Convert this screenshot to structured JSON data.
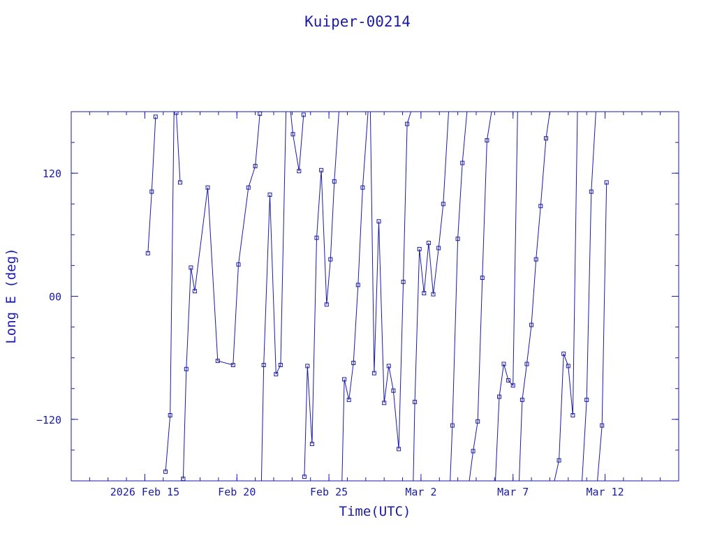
{
  "chart_data": {
    "type": "line",
    "title": "Kuiper-00214",
    "xlabel": "Time(UTC)",
    "ylabel": "Long E (deg)",
    "xlim": [
      "2026-02-11T00:00",
      "2026-03-16T00:00"
    ],
    "ylim": [
      -180,
      180
    ],
    "x_ticks": [
      {
        "t": "2026-02-15T00:00",
        "label": "2026 Feb 15"
      },
      {
        "t": "2026-02-20T00:00",
        "label": "Feb 20"
      },
      {
        "t": "2026-02-25T00:00",
        "label": "Feb 25"
      },
      {
        "t": "2026-03-02T00:00",
        "label": "Mar  2"
      },
      {
        "t": "2026-03-07T00:00",
        "label": "Mar  7"
      },
      {
        "t": "2026-03-12T00:00",
        "label": "Mar 12"
      }
    ],
    "y_ticks": [
      {
        "v": -120,
        "label": "−120"
      },
      {
        "v": 0,
        "label": "00"
      },
      {
        "v": 120,
        "label": "120"
      }
    ],
    "grid": false,
    "color": "#1a1aa8",
    "series": [
      {
        "points": [
          [
            "2026-02-15T04:00",
            42
          ],
          [
            "2026-02-15T09:00",
            102
          ],
          [
            "2026-02-15T14:00",
            175
          ]
        ]
      },
      {
        "points": [
          [
            "2026-02-16T03:00",
            -171
          ],
          [
            "2026-02-16T09:00",
            -116
          ],
          [
            "2026-02-16T14:00",
            180
          ]
        ]
      },
      {
        "points": [
          [
            "2026-02-16T17:00",
            179
          ],
          [
            "2026-02-16T22:00",
            111
          ]
        ]
      },
      {
        "points": [
          [
            "2026-02-17T02:00",
            -178
          ],
          [
            "2026-02-17T06:00",
            -71
          ],
          [
            "2026-02-17T12:00",
            28
          ],
          [
            "2026-02-17T17:00",
            5
          ],
          [
            "2026-02-18T10:00",
            106
          ],
          [
            "2026-02-18T23:00",
            -63
          ],
          [
            "2026-02-19T19:00",
            -67
          ],
          [
            "2026-02-20T02:00",
            31
          ],
          [
            "2026-02-20T15:00",
            106
          ],
          [
            "2026-02-21T00:00",
            127
          ],
          [
            "2026-02-21T06:00",
            178
          ]
        ]
      },
      {
        "points": [
          [
            "2026-02-21T08:00",
            -180
          ],
          [
            "2026-02-21T11:00",
            -67
          ],
          [
            "2026-02-21T19:00",
            99
          ],
          [
            "2026-02-22T03:00",
            -76
          ],
          [
            "2026-02-22T09:00",
            -67
          ],
          [
            "2026-02-22T16:00",
            180
          ]
        ]
      },
      {
        "points": [
          [
            "2026-02-22T22:00",
            180
          ],
          [
            "2026-02-23T01:00",
            158
          ],
          [
            "2026-02-23T09:00",
            122
          ],
          [
            "2026-02-23T15:00",
            177
          ]
        ]
      },
      {
        "points": [
          [
            "2026-02-23T16:00",
            -176
          ],
          [
            "2026-02-23T20:00",
            -68
          ],
          [
            "2026-02-24T02:00",
            -144
          ],
          [
            "2026-02-24T08:00",
            57
          ],
          [
            "2026-02-24T14:00",
            123
          ],
          [
            "2026-02-24T21:00",
            -8
          ],
          [
            "2026-02-25T02:00",
            36
          ],
          [
            "2026-02-25T07:00",
            112
          ],
          [
            "2026-02-25T13:00",
            180
          ]
        ]
      },
      {
        "points": [
          [
            "2026-02-25T17:00",
            -180
          ],
          [
            "2026-02-25T20:00",
            -81
          ],
          [
            "2026-02-26T02:00",
            -101
          ],
          [
            "2026-02-26T08:00",
            -65
          ],
          [
            "2026-02-26T14:00",
            11
          ],
          [
            "2026-02-26T20:00",
            106
          ],
          [
            "2026-02-27T03:00",
            180
          ]
        ]
      },
      {
        "points": [
          [
            "2026-02-27T06:00",
            180
          ],
          [
            "2026-02-27T11:00",
            -75
          ],
          [
            "2026-02-27T17:00",
            73
          ],
          [
            "2026-02-28T00:00",
            -104
          ],
          [
            "2026-02-28T06:00",
            -68
          ],
          [
            "2026-02-28T12:00",
            -92
          ],
          [
            "2026-02-28T19:00",
            -149
          ],
          [
            "2026-03-01T01:00",
            14
          ],
          [
            "2026-03-01T06:00",
            168
          ],
          [
            "2026-03-01T11:00",
            180
          ]
        ]
      },
      {
        "points": [
          [
            "2026-03-01T14:00",
            -180
          ],
          [
            "2026-03-01T16:00",
            -103
          ],
          [
            "2026-03-01T22:00",
            46
          ],
          [
            "2026-03-02T04:00",
            3
          ],
          [
            "2026-03-02T10:00",
            52
          ],
          [
            "2026-03-02T16:00",
            2
          ],
          [
            "2026-03-02T23:00",
            47
          ],
          [
            "2026-03-03T05:00",
            90
          ],
          [
            "2026-03-03T12:00",
            180
          ]
        ]
      },
      {
        "points": [
          [
            "2026-03-03T14:00",
            -180
          ],
          [
            "2026-03-03T17:00",
            -126
          ],
          [
            "2026-03-04T00:00",
            56
          ],
          [
            "2026-03-04T06:00",
            130
          ],
          [
            "2026-03-04T12:00",
            180
          ]
        ]
      },
      {
        "points": [
          [
            "2026-03-04T15:00",
            -180
          ],
          [
            "2026-03-04T20:00",
            -151
          ],
          [
            "2026-03-05T02:00",
            -122
          ],
          [
            "2026-03-05T08:00",
            18
          ],
          [
            "2026-03-05T14:00",
            152
          ],
          [
            "2026-03-05T20:00",
            180
          ]
        ]
      },
      {
        "points": [
          [
            "2026-03-06T01:00",
            -180
          ],
          [
            "2026-03-06T06:00",
            -98
          ],
          [
            "2026-03-06T12:00",
            -66
          ],
          [
            "2026-03-06T18:00",
            -82
          ],
          [
            "2026-03-07T00:00",
            -87
          ],
          [
            "2026-03-07T06:00",
            180
          ]
        ]
      },
      {
        "points": [
          [
            "2026-03-07T08:00",
            -180
          ],
          [
            "2026-03-07T12:00",
            -101
          ],
          [
            "2026-03-07T18:00",
            -66
          ],
          [
            "2026-03-08T00:00",
            -28
          ],
          [
            "2026-03-08T06:00",
            36
          ],
          [
            "2026-03-08T12:00",
            88
          ],
          [
            "2026-03-08T19:00",
            154
          ],
          [
            "2026-03-09T00:00",
            180
          ]
        ]
      },
      {
        "points": [
          [
            "2026-03-09T06:00",
            -180
          ],
          [
            "2026-03-09T12:00",
            -160
          ],
          [
            "2026-03-09T18:00",
            -56
          ],
          [
            "2026-03-10T00:00",
            -68
          ],
          [
            "2026-03-10T06:00",
            -116
          ],
          [
            "2026-03-10T12:00",
            180
          ]
        ]
      },
      {
        "points": [
          [
            "2026-03-10T18:00",
            -180
          ],
          [
            "2026-03-11T00:00",
            -101
          ],
          [
            "2026-03-11T06:00",
            102
          ],
          [
            "2026-03-11T12:00",
            180
          ]
        ]
      },
      {
        "points": [
          [
            "2026-03-11T14:00",
            -180
          ],
          [
            "2026-03-11T20:00",
            -126
          ],
          [
            "2026-03-12T02:00",
            111
          ]
        ]
      }
    ]
  }
}
